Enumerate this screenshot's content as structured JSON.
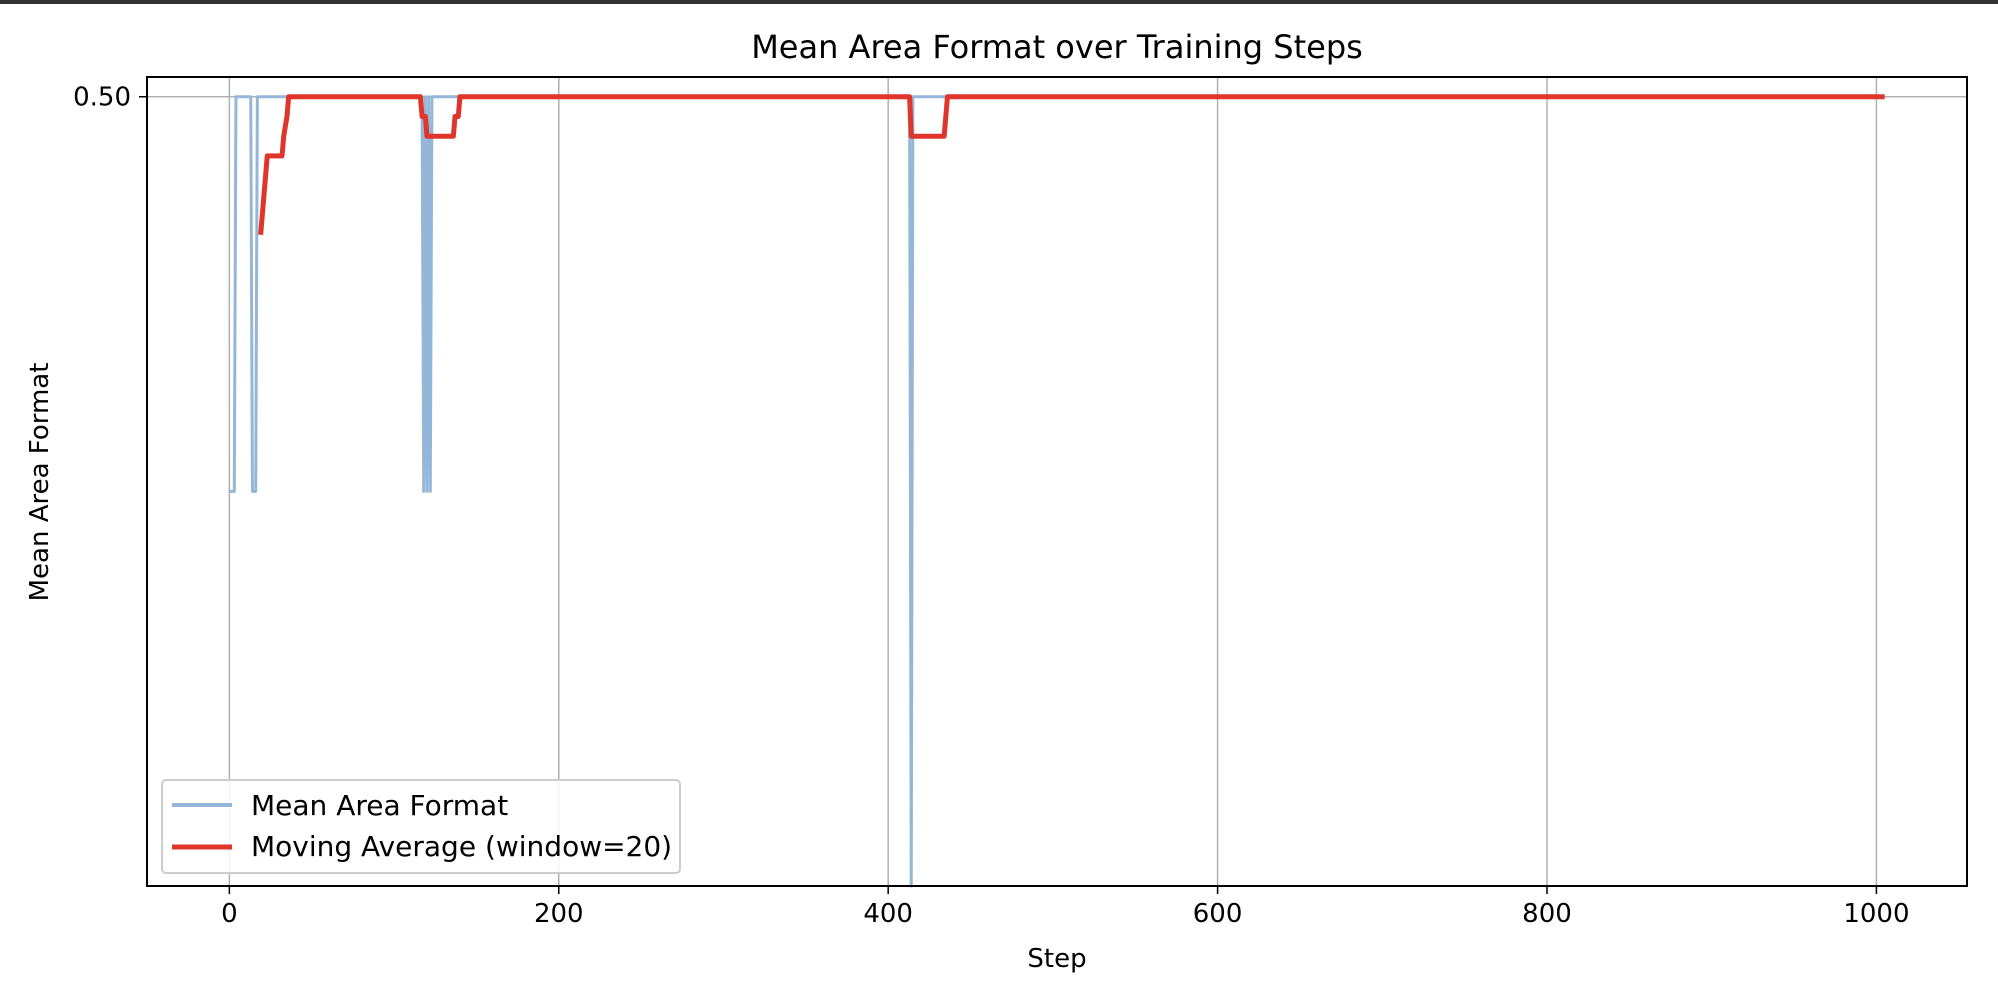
{
  "chart_data": {
    "type": "line",
    "title": "Mean Area Format over Training Steps",
    "xlabel": "Step",
    "ylabel": "Mean Area Format",
    "xlim": [
      -50,
      1055
    ],
    "ylim": [
      0.1,
      0.51
    ],
    "x_ticks": [
      0,
      200,
      400,
      600,
      800,
      1000
    ],
    "x_tick_labels": [
      "0",
      "200",
      "400",
      "600",
      "800",
      "1000"
    ],
    "y_ticks": [
      0.5
    ],
    "y_tick_labels": [
      "0.50"
    ],
    "grid": true,
    "legend_position": "lower-left",
    "series": [
      {
        "name": "Mean Area Format",
        "color": "#94b6d8",
        "x": [
          0,
          3,
          4,
          13,
          14,
          16,
          17,
          117,
          118,
          119,
          120,
          121,
          122,
          123,
          124,
          125,
          413,
          414,
          415,
          416,
          1005
        ],
        "y": [
          0.3,
          0.3,
          0.5,
          0.5,
          0.3,
          0.3,
          0.5,
          0.5,
          0.3,
          0.5,
          0.3,
          0.5,
          0.3,
          0.5,
          0.5,
          0.5,
          0.5,
          0.1,
          0.5,
          0.5,
          0.5
        ]
      },
      {
        "name": "Moving Average (window=20)",
        "color": "#e0352b",
        "x": [
          19,
          22,
          23,
          32,
          33,
          35,
          36,
          116,
          117,
          119,
          120,
          121,
          122,
          136,
          137,
          139,
          140,
          141,
          142,
          413,
          414,
          415,
          416,
          434,
          435,
          436,
          1005
        ],
        "y": [
          0.43,
          0.46,
          0.47,
          0.47,
          0.48,
          0.49,
          0.5,
          0.5,
          0.49,
          0.49,
          0.48,
          0.48,
          0.48,
          0.48,
          0.49,
          0.49,
          0.5,
          0.5,
          0.5,
          0.5,
          0.48,
          0.48,
          0.48,
          0.48,
          0.49,
          0.5,
          0.5
        ]
      }
    ]
  }
}
